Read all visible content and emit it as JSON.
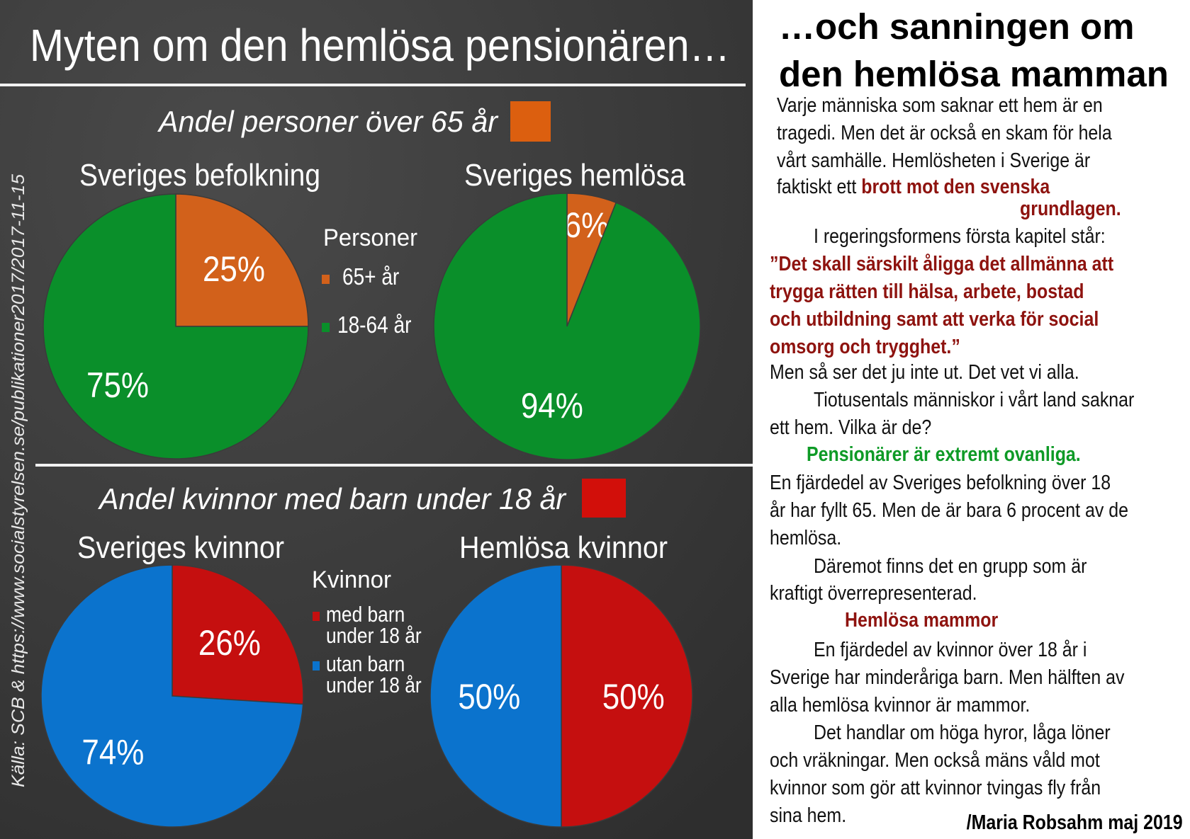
{
  "left": {
    "title": "Myten om den hemlösa pensionären…",
    "source": "Källa: SCB & https://www.socialstyrelsen.se/publikationer2017/2017-11-15",
    "section1_heading": "Andel personer över 65 år",
    "section2_heading": "Andel kvinnor med barn under 18 år"
  },
  "chart_data": [
    {
      "type": "pie",
      "title": "Sveriges befolkning",
      "legend_title": "Personer",
      "categories": [
        "65+ år",
        "18-64 år"
      ],
      "values": [
        25,
        75
      ],
      "labels": [
        "25%",
        "75%"
      ],
      "colors": [
        "#d2611b",
        "#0a8f2a"
      ]
    },
    {
      "type": "pie",
      "title": "Sveriges hemlösa",
      "categories": [
        "65+ år",
        "18-64 år"
      ],
      "values": [
        6,
        94
      ],
      "labels": [
        "6%",
        "94%"
      ],
      "colors": [
        "#d2611b",
        "#0a8f2a"
      ]
    },
    {
      "type": "pie",
      "title": "Sveriges kvinnor",
      "legend_title": "Kvinnor",
      "categories": [
        "med barn under 18 år",
        "utan barn under 18 år"
      ],
      "legend_lines": [
        [
          "med barn",
          "under 18 år"
        ],
        [
          "utan barn",
          "under 18 år"
        ]
      ],
      "values": [
        26,
        74
      ],
      "labels": [
        "26%",
        "74%"
      ],
      "colors": [
        "#c50f0f",
        "#0b73cd"
      ]
    },
    {
      "type": "pie",
      "title": "Hemlösa kvinnor",
      "categories": [
        "med barn under 18 år",
        "utan barn under 18 år"
      ],
      "values": [
        50,
        50
      ],
      "labels": [
        "50%",
        "50%"
      ],
      "colors": [
        "#c50f0f",
        "#0b73cd"
      ]
    }
  ],
  "right": {
    "title_lines": [
      "…och sanningen om",
      "den hemlösa mamman"
    ],
    "lines": [
      [
        {
          "t": "Varje människa som saknar ett hem är en"
        }
      ],
      [
        {
          "t": "tragedi. Men det är också en skam för hela"
        }
      ],
      [
        {
          "t": "vårt samhälle. Hemlösheten i Sverige är"
        }
      ],
      [
        {
          "t": "faktiskt ett "
        },
        {
          "t": "brott mot den svenska",
          "c": "red"
        }
      ],
      [
        {
          "t": "grundlagen.",
          "c": "red"
        }
      ],
      [
        {
          "t": "I regeringsformens första kapitel står:"
        }
      ],
      [
        {
          "t": "”Det skall särskilt åligga det allmänna att",
          "c": "red"
        }
      ],
      [
        {
          "t": "trygga rätten till hälsa, arbete, bostad",
          "c": "red"
        }
      ],
      [
        {
          "t": "och utbildning samt att verka för social",
          "c": "red"
        }
      ],
      [
        {
          "t": "omsorg och trygghet.”",
          "c": "red"
        }
      ],
      [
        {
          "t": "Men så ser det ju inte ut. Det vet vi alla."
        }
      ],
      [
        {
          "t": "Tiotusentals människor i vårt land saknar"
        }
      ],
      [
        {
          "t": "ett hem. Vilka är de?"
        }
      ],
      [
        {
          "t": "Pensionärer är extremt ovanliga.",
          "c": "green"
        }
      ],
      [
        {
          "t": "En fjärdedel av Sveriges befolkning över 18"
        }
      ],
      [
        {
          "t": "år har fyllt 65. Men de är bara 6 procent av de"
        }
      ],
      [
        {
          "t": "hemlösa."
        }
      ],
      [
        {
          "t": "Däremot finns det en grupp som är"
        }
      ],
      [
        {
          "t": "kraftigt överrepresenterad."
        }
      ],
      [
        {
          "t": "Hemlösa mammor",
          "c": "red"
        }
      ],
      [
        {
          "t": "En fjärdedel av kvinnor över 18 år i"
        }
      ],
      [
        {
          "t": "Sverige har minderåriga barn. Men hälften av"
        }
      ],
      [
        {
          "t": "alla hemlösa kvinnor är mammor."
        }
      ],
      [
        {
          "t": "Det handlar om höga hyror, låga löner"
        }
      ],
      [
        {
          "t": "och vräkningar. Men också mäns våld mot"
        }
      ],
      [
        {
          "t": "kvinnor som gör att kvinnor tvingas fly från"
        }
      ],
      [
        {
          "t": "sina hem."
        }
      ]
    ],
    "signature": "/Maria Robsahm maj 2019"
  }
}
